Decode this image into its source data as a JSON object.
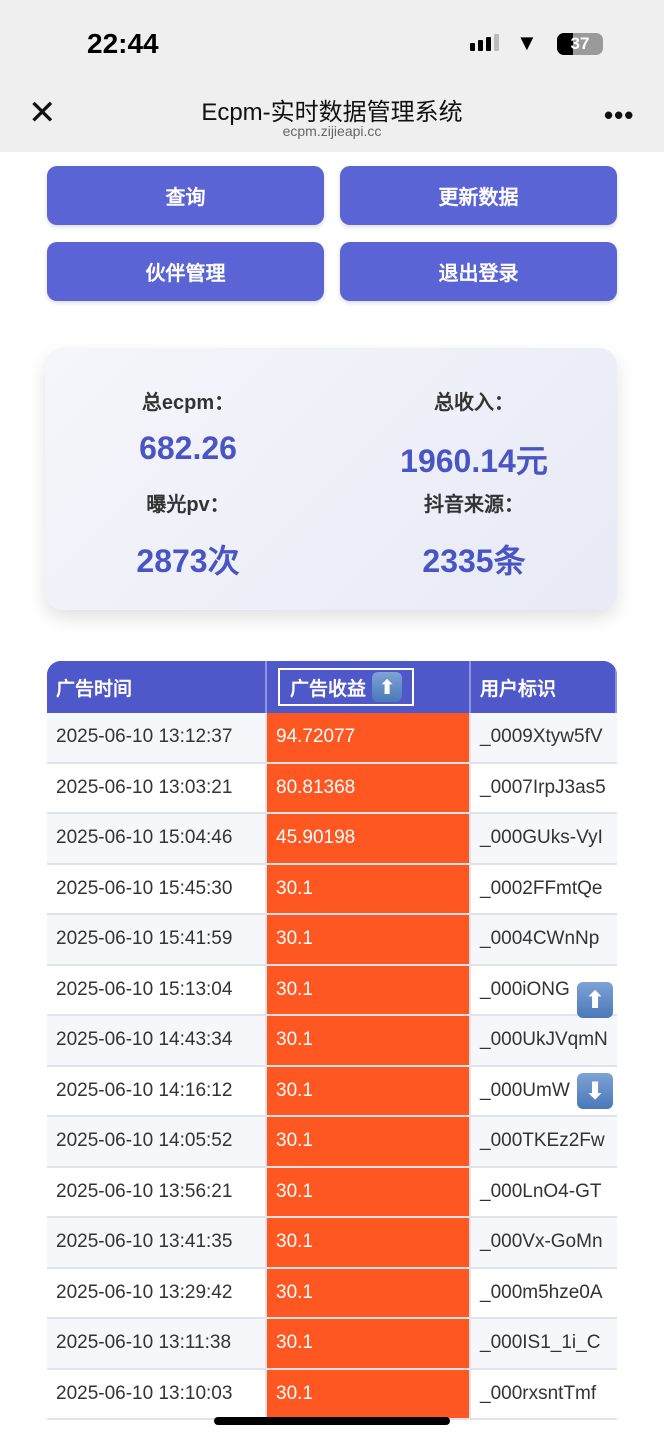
{
  "status_bar": {
    "time": "22:44",
    "battery": "37"
  },
  "browser": {
    "title": "Ecpm-实时数据管理系统",
    "url": "ecpm.zijieapi.cc"
  },
  "buttons": {
    "query": "查询",
    "update": "更新数据",
    "partners": "伙伴管理",
    "logout": "退出登录"
  },
  "summary": {
    "ecpm_label": "总ecpm：",
    "ecpm_value": "682.26",
    "income_label": "总收入：",
    "income_value": "1960.14元",
    "pv_label": "曝光pv：",
    "pv_value": "2873次",
    "source_label": "抖音来源：",
    "source_value": "2335条"
  },
  "table": {
    "headers": [
      "广告时间",
      "广告收益",
      "用户标识"
    ],
    "sort_icon": "up-arrow-icon",
    "rows": [
      [
        "2025-06-10 13:12:37",
        "94.72077",
        "_0009Xtyw5fV"
      ],
      [
        "2025-06-10 13:03:21",
        "80.81368",
        "_0007IrpJ3as5"
      ],
      [
        "2025-06-10 15:04:46",
        "45.90198",
        "_000GUks-VyI"
      ],
      [
        "2025-06-10 15:45:30",
        "30.1",
        "_0002FFmtQe"
      ],
      [
        "2025-06-10 15:41:59",
        "30.1",
        "_0004CWnNp"
      ],
      [
        "2025-06-10 15:13:04",
        "30.1",
        "_000iONG"
      ],
      [
        "2025-06-10 14:43:34",
        "30.1",
        "_000UkJVqmN"
      ],
      [
        "2025-06-10 14:16:12",
        "30.1",
        "_000UmW"
      ],
      [
        "2025-06-10 14:05:52",
        "30.1",
        "_000TKEz2Fw"
      ],
      [
        "2025-06-10 13:56:21",
        "30.1",
        "_000LnO4-GT"
      ],
      [
        "2025-06-10 13:41:35",
        "30.1",
        "_000Vx-GoMn"
      ],
      [
        "2025-06-10 13:29:42",
        "30.1",
        "_000m5hze0A"
      ],
      [
        "2025-06-10 13:11:38",
        "30.1",
        "_000IS1_1i_C"
      ],
      [
        "2025-06-10 13:10:03",
        "30.1",
        "_000rxsntTmf"
      ]
    ]
  },
  "colors": {
    "accent": "#5b64d4",
    "header": "#4e58c9",
    "revenue_cell": "#fe5722",
    "value_text": "#4a55c4"
  }
}
